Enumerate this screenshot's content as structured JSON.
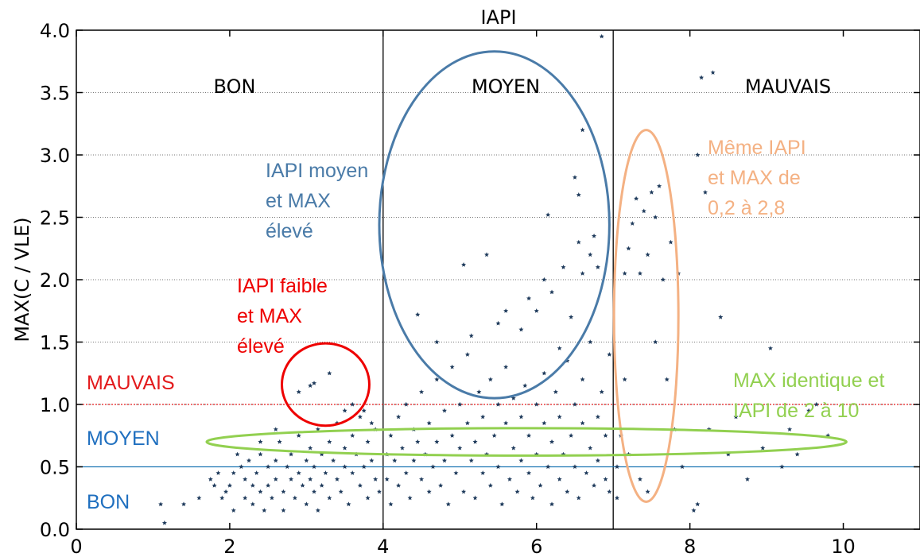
{
  "chart_data": {
    "type": "scatter",
    "title": "IAPI",
    "xlabel": "",
    "ylabel": "MAX(C / VLE)",
    "xlim": [
      0,
      11
    ],
    "ylim": [
      0,
      4
    ],
    "x_ticks": [
      "0",
      "2",
      "4",
      "6",
      "8",
      "10"
    ],
    "y_ticks": [
      "0.0",
      "0.5",
      "1.0",
      "1.5",
      "2.0",
      "2.5",
      "3.0",
      "3.5",
      "4.0"
    ],
    "grid": "horizontal dotted",
    "zones": [
      {
        "label": "BON",
        "x_from": 0,
        "x_to": 4
      },
      {
        "label": "MOYEN",
        "x_from": 4,
        "x_to": 7
      },
      {
        "label": "MAUVAIS",
        "x_from": 7,
        "x_to": 11
      }
    ],
    "vertical_thresholds": [
      4,
      7
    ],
    "horizontal_thresholds": [
      {
        "y": 0.5,
        "color": "#1f77b4",
        "style": "solid"
      },
      {
        "y": 1.0,
        "color": "#e31a1c",
        "style": "dotted"
      }
    ],
    "horizontal_zone_labels": [
      {
        "label": "MAUVAIS",
        "color": "#e31a1c"
      },
      {
        "label": "MOYEN",
        "color": "#1f6fbf"
      },
      {
        "label": "BON",
        "color": "#1f6fbf"
      }
    ],
    "annotations": [
      {
        "lines": [
          "IAPI moyen",
          "et MAX",
          "élevé"
        ],
        "color": "#4a7ba8",
        "shape": "ellipse",
        "cx": 5.45,
        "cy": 2.44,
        "rx": 1.5,
        "ry": 1.39
      },
      {
        "lines": [
          "IAPI faible",
          "et MAX",
          "élevé"
        ],
        "color": "#ee0000",
        "shape": "ellipse",
        "cx": 3.25,
        "cy": 1.16,
        "rx": 0.57,
        "ry": 0.33
      },
      {
        "lines": [
          "Même IAPI",
          "et MAX de",
          "0,2 à 2,8"
        ],
        "color": "#f4b183",
        "shape": "ellipse",
        "cx": 7.43,
        "cy": 1.71,
        "rx": 0.42,
        "ry": 1.49
      },
      {
        "lines": [
          "MAX identique et",
          "IAPI de 2 à 10"
        ],
        "color": "#92d050",
        "shape": "ellipse",
        "cx": 5.87,
        "cy": 0.7,
        "rx": 4.17,
        "ry": 0.11
      }
    ],
    "marker_color": "#1f3b5c",
    "series": [
      {
        "points": [
          [
            1.1,
            0.2
          ],
          [
            1.15,
            0.05
          ],
          [
            1.4,
            0.2
          ],
          [
            1.6,
            0.25
          ],
          [
            1.75,
            0.4
          ],
          [
            1.8,
            0.35
          ],
          [
            1.85,
            0.45
          ],
          [
            1.9,
            0.25
          ],
          [
            1.95,
            0.3
          ],
          [
            2.0,
            0.35
          ],
          [
            2.05,
            0.45
          ],
          [
            2.05,
            0.15
          ],
          [
            2.1,
            0.6
          ],
          [
            2.15,
            0.5
          ],
          [
            2.2,
            0.4
          ],
          [
            2.2,
            0.25
          ],
          [
            2.25,
            0.55
          ],
          [
            2.3,
            0.35
          ],
          [
            2.3,
            0.2
          ],
          [
            2.35,
            0.45
          ],
          [
            2.4,
            0.6
          ],
          [
            2.4,
            0.3
          ],
          [
            2.45,
            0.15
          ],
          [
            2.5,
            0.5
          ],
          [
            2.5,
            0.35
          ],
          [
            2.55,
            0.25
          ],
          [
            2.6,
            0.55
          ],
          [
            2.6,
            0.4
          ],
          [
            2.65,
            0.7
          ],
          [
            2.7,
            0.3
          ],
          [
            2.7,
            0.15
          ],
          [
            2.75,
            0.5
          ],
          [
            2.8,
            0.4
          ],
          [
            2.8,
            0.6
          ],
          [
            2.85,
            0.25
          ],
          [
            2.9,
            0.75
          ],
          [
            2.9,
            0.45
          ],
          [
            2.95,
            0.35
          ],
          [
            3.0,
            0.55
          ],
          [
            3.0,
            0.2
          ],
          [
            3.05,
            0.65
          ],
          [
            3.05,
            0.4
          ],
          [
            3.1,
            0.3
          ],
          [
            3.1,
            0.5
          ],
          [
            3.15,
            0.8
          ],
          [
            3.15,
            0.15
          ],
          [
            3.2,
            0.6
          ],
          [
            3.2,
            0.35
          ],
          [
            3.25,
            0.45
          ],
          [
            3.3,
            0.7
          ],
          [
            3.3,
            0.25
          ],
          [
            3.35,
            0.55
          ],
          [
            3.4,
            0.85
          ],
          [
            3.4,
            0.4
          ],
          [
            3.45,
            0.3
          ],
          [
            3.5,
            0.65
          ],
          [
            3.5,
            0.5
          ],
          [
            3.55,
            0.2
          ],
          [
            3.6,
            0.75
          ],
          [
            3.6,
            0.45
          ],
          [
            3.65,
            0.6
          ],
          [
            3.7,
            0.35
          ],
          [
            3.7,
            0.9
          ],
          [
            3.75,
            0.5
          ],
          [
            3.8,
            0.7
          ],
          [
            3.8,
            0.25
          ],
          [
            3.85,
            0.55
          ],
          [
            3.9,
            0.4
          ],
          [
            3.9,
            0.8
          ],
          [
            3.95,
            0.3
          ],
          [
            2.9,
            1.1
          ],
          [
            3.05,
            1.15
          ],
          [
            3.1,
            1.17
          ],
          [
            3.3,
            1.25
          ],
          [
            2.4,
            0.7
          ],
          [
            2.6,
            0.8
          ],
          [
            3.5,
            0.95
          ],
          [
            3.6,
            1.0
          ],
          [
            3.75,
            0.95
          ],
          [
            3.85,
            0.85
          ],
          [
            4.05,
            0.6
          ],
          [
            4.05,
            0.4
          ],
          [
            4.1,
            0.75
          ],
          [
            4.1,
            0.2
          ],
          [
            4.15,
            0.55
          ],
          [
            4.2,
            0.9
          ],
          [
            4.2,
            0.35
          ],
          [
            4.25,
            0.65
          ],
          [
            4.3,
            0.45
          ],
          [
            4.3,
            1.0
          ],
          [
            4.35,
            0.25
          ],
          [
            4.4,
            0.8
          ],
          [
            4.4,
            0.55
          ],
          [
            4.45,
            0.7
          ],
          [
            4.5,
            0.4
          ],
          [
            4.5,
            1.1
          ],
          [
            4.55,
            0.6
          ],
          [
            4.6,
            0.3
          ],
          [
            4.6,
            0.85
          ],
          [
            4.65,
            0.5
          ],
          [
            4.7,
            1.2
          ],
          [
            4.7,
            0.7
          ],
          [
            4.75,
            0.35
          ],
          [
            4.8,
            0.95
          ],
          [
            4.8,
            0.55
          ],
          [
            4.85,
            0.2
          ],
          [
            4.9,
            0.75
          ],
          [
            4.9,
            1.3
          ],
          [
            4.95,
            0.45
          ],
          [
            5.0,
            0.65
          ],
          [
            5.0,
            1.0
          ],
          [
            5.05,
            0.3
          ],
          [
            5.1,
            0.85
          ],
          [
            5.1,
            1.4
          ],
          [
            5.15,
            0.55
          ],
          [
            5.2,
            0.7
          ],
          [
            5.2,
            0.25
          ],
          [
            5.25,
            1.1
          ],
          [
            5.3,
            0.45
          ],
          [
            5.3,
            0.9
          ],
          [
            5.35,
            0.6
          ],
          [
            5.4,
            1.2
          ],
          [
            5.4,
            0.35
          ],
          [
            5.45,
            0.75
          ],
          [
            5.5,
            1.0
          ],
          [
            5.5,
            0.5
          ],
          [
            5.55,
            0.2
          ],
          [
            5.6,
            0.85
          ],
          [
            5.6,
            1.3
          ],
          [
            5.65,
            0.4
          ],
          [
            5.7,
            0.65
          ],
          [
            5.7,
            1.05
          ],
          [
            5.75,
            0.3
          ],
          [
            5.8,
            0.9
          ],
          [
            5.8,
            0.55
          ],
          [
            5.85,
            1.15
          ],
          [
            5.9,
            0.45
          ],
          [
            5.9,
            0.75
          ],
          [
            5.95,
            0.25
          ],
          [
            6.0,
            1.0
          ],
          [
            6.0,
            0.6
          ],
          [
            6.05,
            0.35
          ],
          [
            6.1,
            0.85
          ],
          [
            6.1,
            1.25
          ],
          [
            6.15,
            0.5
          ],
          [
            6.2,
            0.7
          ],
          [
            6.2,
            0.2
          ],
          [
            6.25,
            1.1
          ],
          [
            6.3,
            0.4
          ],
          [
            6.3,
            0.9
          ],
          [
            6.35,
            0.6
          ],
          [
            6.4,
            1.35
          ],
          [
            6.4,
            0.3
          ],
          [
            6.45,
            0.75
          ],
          [
            6.5,
            1.0
          ],
          [
            6.5,
            0.5
          ],
          [
            6.55,
            0.25
          ],
          [
            6.6,
            0.85
          ],
          [
            6.6,
            1.2
          ],
          [
            6.65,
            0.45
          ],
          [
            6.7,
            0.65
          ],
          [
            6.7,
            1.5
          ],
          [
            6.75,
            0.35
          ],
          [
            6.8,
            0.9
          ],
          [
            6.8,
            0.55
          ],
          [
            6.85,
            1.1
          ],
          [
            6.9,
            0.4
          ],
          [
            6.9,
            0.75
          ],
          [
            6.95,
            0.3
          ],
          [
            6.95,
            1.4
          ],
          [
            5.05,
            2.12
          ],
          [
            5.35,
            2.2
          ],
          [
            4.45,
            1.72
          ],
          [
            4.7,
            1.5
          ],
          [
            5.15,
            1.55
          ],
          [
            5.6,
            1.75
          ],
          [
            5.9,
            1.85
          ],
          [
            6.1,
            2.0
          ],
          [
            6.2,
            1.9
          ],
          [
            6.35,
            2.1
          ],
          [
            6.45,
            1.7
          ],
          [
            6.55,
            2.3
          ],
          [
            6.6,
            2.05
          ],
          [
            6.7,
            2.2
          ],
          [
            6.75,
            2.35
          ],
          [
            6.8,
            2.1
          ],
          [
            6.15,
            2.52
          ],
          [
            6.55,
            2.68
          ],
          [
            6.5,
            2.82
          ],
          [
            6.6,
            3.2
          ],
          [
            6.85,
            3.95
          ],
          [
            5.8,
            1.6
          ],
          [
            5.5,
            1.65
          ],
          [
            6.0,
            1.75
          ],
          [
            6.3,
            1.45
          ],
          [
            7.05,
            0.5
          ],
          [
            7.05,
            0.25
          ],
          [
            7.1,
            0.75
          ],
          [
            7.15,
            1.2
          ],
          [
            7.15,
            2.05
          ],
          [
            7.2,
            2.25
          ],
          [
            7.2,
            0.6
          ],
          [
            7.25,
            2.45
          ],
          [
            7.3,
            2.65
          ],
          [
            7.35,
            2.05
          ],
          [
            7.35,
            0.4
          ],
          [
            7.4,
            2.55
          ],
          [
            7.45,
            2.2
          ],
          [
            7.45,
            0.3
          ],
          [
            7.5,
            2.7
          ],
          [
            7.55,
            2.5
          ],
          [
            7.55,
            1.5
          ],
          [
            7.6,
            2.75
          ],
          [
            7.65,
            2.0
          ],
          [
            7.7,
            1.2
          ],
          [
            7.75,
            2.3
          ],
          [
            7.8,
            0.8
          ],
          [
            7.85,
            2.05
          ],
          [
            7.9,
            0.5
          ],
          [
            8.05,
            0.15
          ],
          [
            8.1,
            0.2
          ],
          [
            8.15,
            3.62
          ],
          [
            8.4,
            1.7
          ],
          [
            8.5,
            0.6
          ],
          [
            8.75,
            0.4
          ],
          [
            9.05,
            1.45
          ],
          [
            9.2,
            0.5
          ],
          [
            9.3,
            0.8
          ],
          [
            9.4,
            0.6
          ],
          [
            9.55,
            0.95
          ],
          [
            9.65,
            1.0
          ],
          [
            9.8,
            0.75
          ],
          [
            8.95,
            0.65
          ],
          [
            8.25,
            0.8
          ],
          [
            8.6,
            0.9
          ],
          [
            8.1,
            3.0
          ],
          [
            8.2,
            2.7
          ],
          [
            8.3,
            3.66
          ]
        ]
      }
    ]
  }
}
